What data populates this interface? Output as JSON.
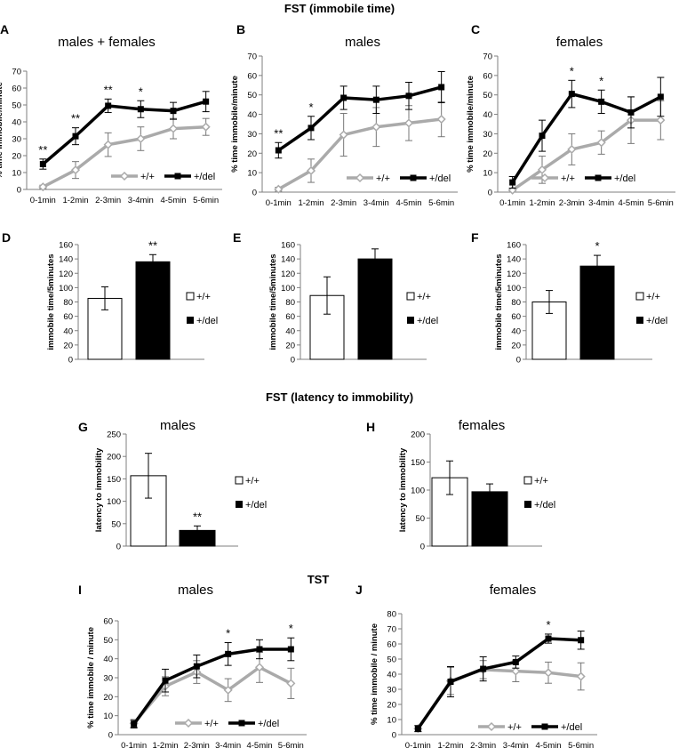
{
  "section_titles": {
    "fst_immobile": "FST (immobile time)",
    "fst_latency": "FST (latency to immobility)",
    "tst": "TST"
  },
  "colors": {
    "wt_line": "#aaaaaa",
    "del_line": "#000000",
    "wt_bar": "#ffffff",
    "del_bar": "#000000",
    "axis": "#7f7f7f"
  },
  "chart_data": [
    {
      "id": "A",
      "type": "line",
      "title": "males + females",
      "ylabel": "% time immobile/minute",
      "ylim": [
        0,
        70
      ],
      "yticks": [
        0,
        10,
        20,
        30,
        40,
        50,
        60,
        70
      ],
      "categories": [
        "0-1min",
        "1-2min",
        "2-3min",
        "3-4min",
        "4-5min",
        "5-6min"
      ],
      "series": [
        {
          "name": "+/+",
          "values": [
            1.5,
            11.5,
            26.5,
            30,
            36,
            37
          ],
          "errors": [
            1,
            5,
            7,
            7,
            6,
            5
          ]
        },
        {
          "name": "+/del",
          "values": [
            15,
            31.5,
            49.5,
            47.5,
            46.5,
            52
          ],
          "errors": [
            3,
            5,
            4,
            5,
            5,
            6
          ]
        }
      ],
      "annotations": [
        {
          "index": 0,
          "text": "**"
        },
        {
          "index": 1,
          "text": "**"
        },
        {
          "index": 2,
          "text": "**"
        },
        {
          "index": 3,
          "text": "*"
        }
      ]
    },
    {
      "id": "B",
      "type": "line",
      "title": "males",
      "ylabel": "% time immobile/minute",
      "ylim": [
        0,
        70
      ],
      "yticks": [
        0,
        10,
        20,
        30,
        40,
        50,
        60,
        70
      ],
      "categories": [
        "0-1min",
        "1-2min",
        "2-3min",
        "3-4min",
        "4-5min",
        "5-6min"
      ],
      "series": [
        {
          "name": "+/+",
          "values": [
            1.5,
            11,
            29.5,
            33.5,
            35.5,
            37.5
          ],
          "errors": [
            1,
            6,
            11,
            10,
            9,
            9
          ]
        },
        {
          "name": "+/del",
          "values": [
            21.5,
            33,
            48.5,
            47.5,
            49.5,
            54
          ],
          "errors": [
            4,
            6,
            6,
            7,
            7,
            8
          ]
        }
      ],
      "annotations": [
        {
          "index": 0,
          "text": "**"
        },
        {
          "index": 1,
          "text": "*"
        }
      ]
    },
    {
      "id": "C",
      "type": "line",
      "title": "females",
      "ylabel": "% time immobile/minute",
      "ylim": [
        0,
        70
      ],
      "yticks": [
        0,
        10,
        20,
        30,
        40,
        50,
        60,
        70
      ],
      "categories": [
        "0-1min",
        "1-2min",
        "2-3min",
        "3-4min",
        "4-5min",
        "5-6min"
      ],
      "series": [
        {
          "name": "+/+",
          "values": [
            1,
            11.5,
            22,
            25.5,
            37,
            37
          ],
          "errors": [
            1,
            7,
            8,
            6,
            12,
            10
          ]
        },
        {
          "name": "+/del",
          "values": [
            5,
            29,
            50.5,
            46.5,
            41,
            49
          ],
          "errors": [
            3,
            8,
            7,
            6,
            8,
            10
          ]
        }
      ],
      "annotations": [
        {
          "index": 2,
          "text": "*"
        },
        {
          "index": 3,
          "text": "*"
        }
      ]
    },
    {
      "id": "D",
      "type": "bar",
      "ylabel": "immobile time/5minutes",
      "ylim": [
        0,
        160
      ],
      "yticks": [
        0,
        20,
        40,
        60,
        80,
        100,
        120,
        140,
        160
      ],
      "categories": [
        "+/+",
        "+/del"
      ],
      "values": [
        85,
        136
      ],
      "errors": [
        16,
        10
      ],
      "annotations": [
        {
          "index": 1,
          "text": "**"
        }
      ]
    },
    {
      "id": "E",
      "type": "bar",
      "ylabel": "immobile time/5minutes",
      "ylim": [
        0,
        160
      ],
      "yticks": [
        0,
        20,
        40,
        60,
        80,
        100,
        120,
        140,
        160
      ],
      "categories": [
        "+/+",
        "+/del"
      ],
      "values": [
        89,
        140
      ],
      "errors": [
        26,
        14
      ],
      "annotations": []
    },
    {
      "id": "F",
      "type": "bar",
      "ylabel": "immobile time/5minutes",
      "ylim": [
        0,
        160
      ],
      "yticks": [
        0,
        20,
        40,
        60,
        80,
        100,
        120,
        140,
        160
      ],
      "categories": [
        "+/+",
        "+/del"
      ],
      "values": [
        80,
        130
      ],
      "errors": [
        16,
        15
      ],
      "annotations": [
        {
          "index": 1,
          "text": "*"
        }
      ]
    },
    {
      "id": "G",
      "type": "bar",
      "title": "males",
      "ylabel": "latency to immobility",
      "ylim": [
        0,
        250
      ],
      "yticks": [
        0,
        50,
        100,
        150,
        200,
        250
      ],
      "categories": [
        "+/+",
        "+/del"
      ],
      "values": [
        157,
        35
      ],
      "errors": [
        50,
        10
      ],
      "annotations": [
        {
          "index": 1,
          "text": "**"
        }
      ]
    },
    {
      "id": "H",
      "type": "bar",
      "title": "females",
      "ylabel": "latency to immobility",
      "ylim": [
        0,
        200
      ],
      "yticks": [
        0,
        50,
        100,
        150,
        200
      ],
      "categories": [
        "+/+",
        "+/del"
      ],
      "values": [
        122,
        97
      ],
      "errors": [
        30,
        14
      ],
      "annotations": []
    },
    {
      "id": "I",
      "type": "line",
      "title": "males",
      "ylabel": "% time immobile / minute",
      "ylim": [
        0,
        60
      ],
      "yticks": [
        0,
        10,
        20,
        30,
        40,
        50,
        60
      ],
      "categories": [
        "0-1min",
        "1-2min",
        "2-3min",
        "3-4min",
        "4-5min",
        "5-6min"
      ],
      "series": [
        {
          "name": "+/+",
          "values": [
            6,
            25.5,
            33,
            23.5,
            35.5,
            27
          ],
          "errors": [
            2,
            5,
            6,
            6,
            8,
            8
          ]
        },
        {
          "name": "+/del",
          "values": [
            5.5,
            28.5,
            36,
            42.5,
            45,
            45
          ],
          "errors": [
            2,
            6,
            6,
            6,
            5,
            6
          ]
        }
      ],
      "annotations": [
        {
          "index": 3,
          "text": "*"
        },
        {
          "index": 5,
          "text": "*"
        }
      ]
    },
    {
      "id": "J",
      "type": "line",
      "title": "females",
      "ylabel": "% time immobile / minute",
      "ylim": [
        0,
        80
      ],
      "yticks": [
        0,
        10,
        20,
        30,
        40,
        50,
        60,
        70,
        80
      ],
      "categories": [
        "0-1min",
        "1-2min",
        "2-3min",
        "3-4min",
        "4-5min",
        "5-6min"
      ],
      "series": [
        {
          "name": "+/+",
          "values": [
            4,
            35.5,
            43,
            42,
            41,
            38.5
          ],
          "errors": [
            2,
            9,
            6,
            7,
            7,
            9
          ]
        },
        {
          "name": "+/del",
          "values": [
            4,
            35,
            43.5,
            48,
            63.5,
            62.5
          ],
          "errors": [
            2,
            10,
            8,
            4,
            3,
            6
          ]
        }
      ],
      "annotations": [
        {
          "index": 4,
          "text": "*"
        }
      ]
    }
  ]
}
